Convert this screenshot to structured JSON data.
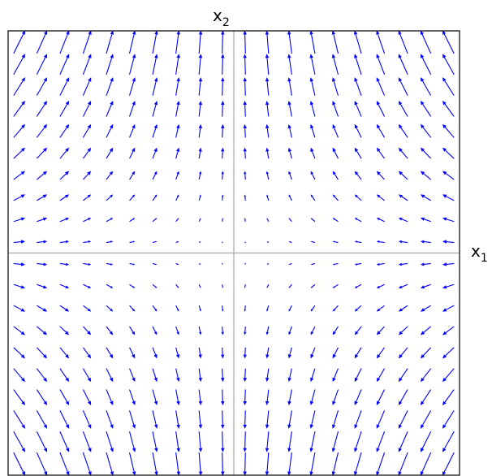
{
  "chart_data": {
    "type": "quiver",
    "xlabel": {
      "base": "x",
      "sub": "1"
    },
    "ylabel": {
      "base": "x",
      "sub": "2"
    },
    "xlim": [
      -1,
      1
    ],
    "ylim": [
      -1,
      1
    ],
    "grid": {
      "x": [
        -0.95,
        -0.85,
        -0.75,
        -0.65,
        -0.55,
        -0.45,
        -0.35,
        -0.25,
        -0.15,
        -0.05,
        0.05,
        0.15,
        0.25,
        0.35,
        0.45,
        0.55,
        0.65,
        0.75,
        0.85,
        0.95
      ],
      "y": [
        -0.95,
        -0.85,
        -0.75,
        -0.65,
        -0.55,
        -0.45,
        -0.35,
        -0.25,
        -0.15,
        -0.05,
        0.05,
        0.15,
        0.25,
        0.35,
        0.45,
        0.55,
        0.65,
        0.75,
        0.85,
        0.95
      ]
    },
    "field": {
      "u": "-0.5 * x1",
      "v": "x2"
    },
    "axis_lines": [
      {
        "orientation": "vertical",
        "at": 0
      },
      {
        "orientation": "horizontal",
        "at": 0
      }
    ],
    "colors": {
      "arrows": "#0000ff",
      "axes": "#b3b3b3",
      "frame": "#000000"
    }
  }
}
